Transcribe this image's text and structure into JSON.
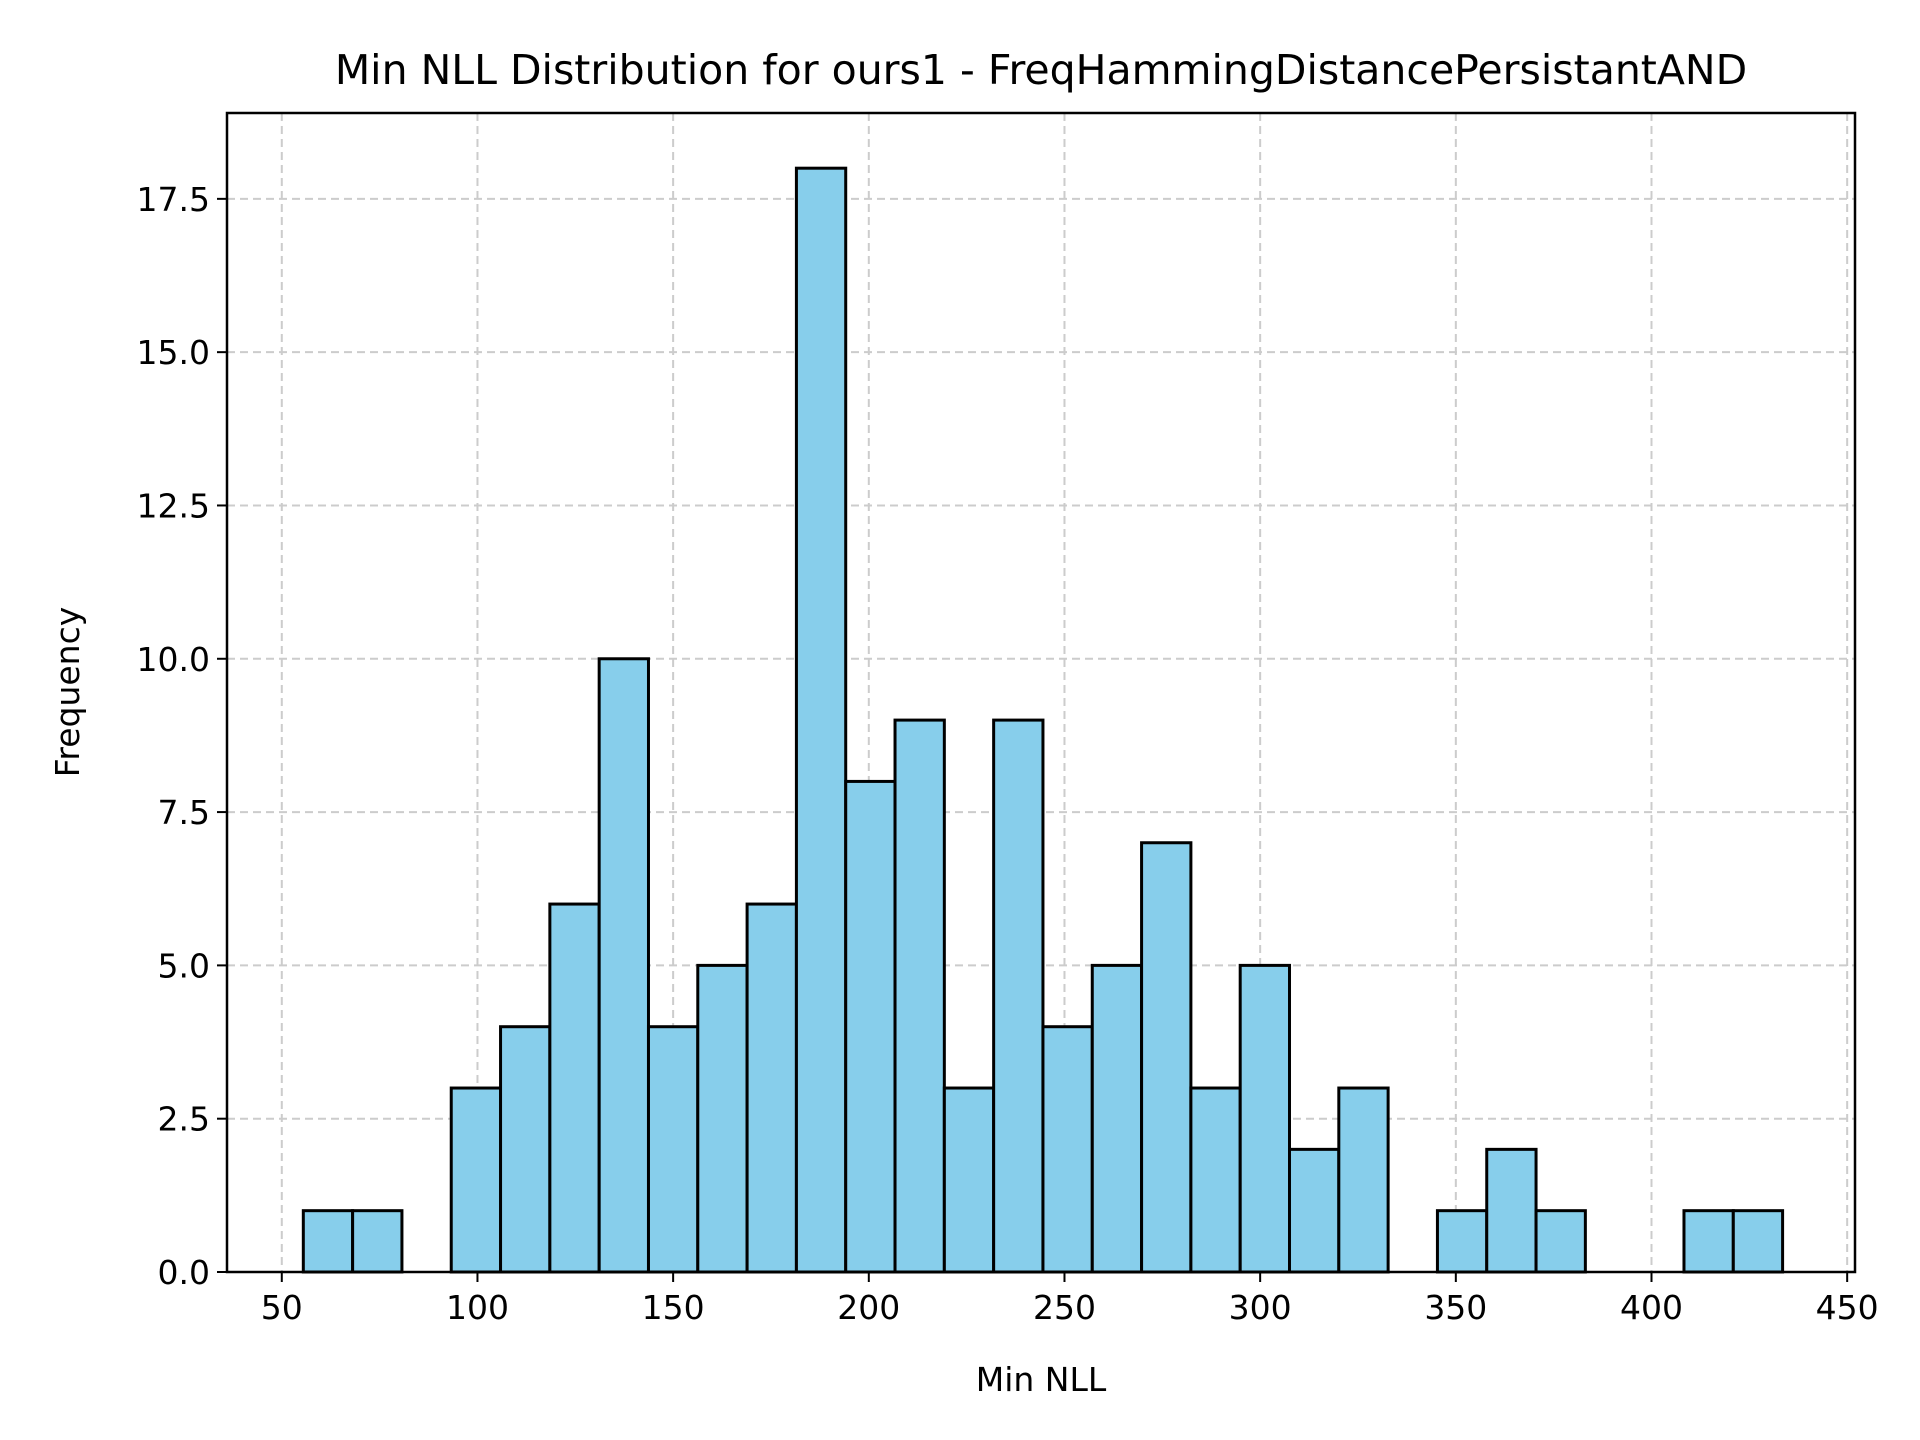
{
  "chart_data": {
    "type": "bar",
    "title": "Min NLL Distribution for ours1 - FreqHammingDistancePersistantAND",
    "xlabel": "Min NLL",
    "ylabel": "Frequency",
    "bin_start": 55.5,
    "bin_width": 12.6,
    "values": [
      1,
      1,
      0,
      3,
      4,
      6,
      10,
      4,
      5,
      6,
      18,
      8,
      9,
      3,
      9,
      4,
      5,
      7,
      3,
      5,
      2,
      3,
      0,
      1,
      2,
      1,
      0,
      0,
      1,
      1
    ],
    "xlim": [
      36,
      452
    ],
    "ylim": [
      0,
      18.9
    ],
    "xticks": [
      50,
      100,
      150,
      200,
      250,
      300,
      350,
      400,
      450
    ],
    "yticks": [
      0.0,
      2.5,
      5.0,
      7.5,
      10.0,
      12.5,
      15.0,
      17.5
    ],
    "ytick_labels": [
      "0.0",
      "2.5",
      "5.0",
      "7.5",
      "10.0",
      "12.5",
      "15.0",
      "17.5"
    ],
    "grid": true,
    "bar_color": "#87CEEB",
    "edge_color": "#000000"
  }
}
